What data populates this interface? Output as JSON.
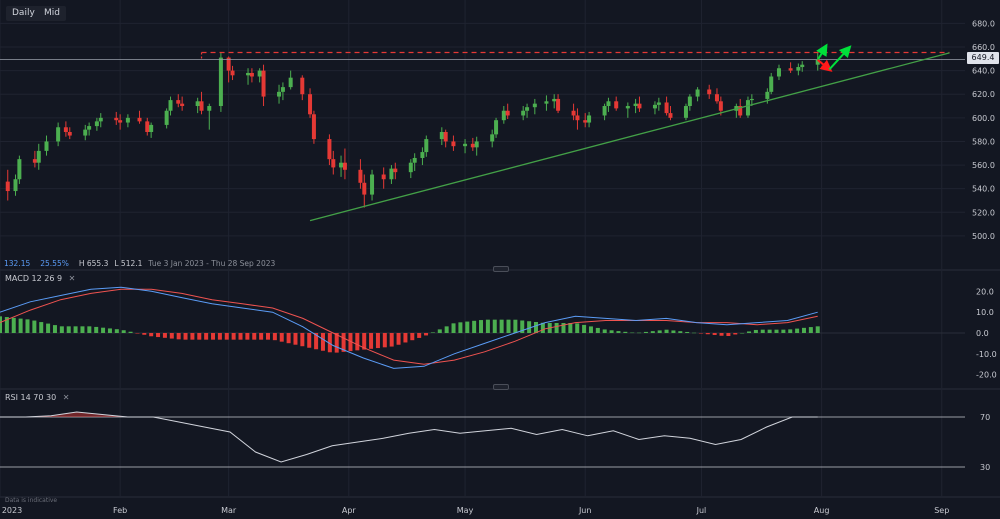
{
  "toolbar": {
    "daily_label": "Daily",
    "mid_label": "Mid"
  },
  "stats": {
    "v1": "132.15",
    "v2": "25.55%",
    "high": "H 655.3",
    "low": "L 512.1",
    "range": "Tue 3 Jan 2023 - Thu 28 Sep 2023"
  },
  "current_price": "649.4",
  "disclaimer": "Data is indicative",
  "macd_label": {
    "name": "MACD",
    "p1": "12",
    "p2": "26",
    "p3": "9",
    "close": "✕"
  },
  "rsi_label": {
    "name": "RSI",
    "p1": "14",
    "p2": "70",
    "p3": "30",
    "close": "✕"
  },
  "colors": {
    "bg": "#131722",
    "up": "#26a69a",
    "up_candle": "#4caf50",
    "down": "#e53935",
    "trend": "#43a047",
    "resistance": "#e53935",
    "macd": "#5b9cf6",
    "signal": "#ef5350",
    "rsi": "#d1d4dc"
  },
  "chart_data": [
    {
      "type": "candlestick",
      "title": "",
      "x_range": [
        "2023-01-01",
        "2023-09-07"
      ],
      "x_tick_labels": [
        "2023",
        "Feb",
        "Mar",
        "Apr",
        "May",
        "Jun",
        "Jul",
        "Aug",
        "Sep"
      ],
      "y_ticks": [
        500,
        520,
        540,
        560,
        580,
        600,
        620,
        640,
        660,
        680
      ],
      "y_range": [
        483,
        693
      ],
      "ohlc": [
        [
          546,
          556,
          530,
          538
        ],
        [
          538,
          552,
          534,
          548
        ],
        [
          548,
          568,
          544,
          565
        ],
        [
          565,
          572,
          558,
          562
        ],
        [
          562,
          578,
          556,
          572
        ],
        [
          572,
          585,
          568,
          580
        ],
        [
          580,
          596,
          576,
          592
        ],
        [
          592,
          597,
          584,
          588
        ],
        [
          588,
          592,
          582,
          585
        ],
        [
          585,
          594,
          581,
          590
        ],
        [
          590,
          596,
          585,
          593
        ],
        [
          593,
          600,
          589,
          597
        ],
        [
          597,
          604,
          592,
          600
        ],
        [
          600,
          605,
          594,
          598
        ],
        [
          598,
          603,
          590,
          596
        ],
        [
          596,
          603,
          592,
          600
        ],
        [
          600,
          606,
          595,
          597
        ],
        [
          597,
          600,
          585,
          588
        ],
        [
          588,
          596,
          583,
          594
        ],
        [
          594,
          608,
          591,
          606
        ],
        [
          606,
          618,
          602,
          615
        ],
        [
          615,
          620,
          609,
          612
        ],
        [
          612,
          618,
          606,
          610
        ],
        [
          610,
          617,
          604,
          614
        ],
        [
          614,
          622,
          603,
          606
        ],
        [
          606,
          612,
          590,
          610
        ],
        [
          610,
          655,
          605,
          651
        ],
        [
          651,
          652,
          630,
          640
        ],
        [
          640,
          644,
          632,
          636
        ],
        [
          636,
          642,
          628,
          638
        ],
        [
          638,
          642,
          630,
          635
        ],
        [
          635,
          642,
          630,
          640
        ],
        [
          640,
          645,
          610,
          618
        ],
        [
          618,
          628,
          612,
          622
        ],
        [
          622,
          630,
          615,
          626
        ],
        [
          626,
          640,
          624,
          634
        ],
        [
          634,
          636,
          615,
          620
        ],
        [
          620,
          625,
          600,
          603
        ],
        [
          603,
          606,
          578,
          582
        ],
        [
          582,
          586,
          560,
          565
        ],
        [
          565,
          572,
          552,
          558
        ],
        [
          558,
          568,
          550,
          562
        ],
        [
          562,
          574,
          548,
          556
        ],
        [
          556,
          565,
          540,
          545
        ],
        [
          545,
          552,
          524,
          535
        ],
        [
          535,
          556,
          530,
          552
        ],
        [
          552,
          558,
          540,
          548
        ],
        [
          548,
          560,
          544,
          557
        ],
        [
          557,
          562,
          548,
          554
        ],
        [
          554,
          565,
          549,
          562
        ],
        [
          562,
          570,
          555,
          566
        ],
        [
          566,
          575,
          560,
          571
        ],
        [
          571,
          585,
          567,
          582
        ],
        [
          582,
          592,
          577,
          588
        ],
        [
          588,
          590,
          575,
          580
        ],
        [
          580,
          585,
          572,
          576
        ],
        [
          576,
          582,
          570,
          578
        ],
        [
          578,
          583,
          572,
          575
        ],
        [
          575,
          584,
          568,
          580
        ],
        [
          580,
          590,
          575,
          586
        ],
        [
          586,
          600,
          583,
          598
        ],
        [
          598,
          610,
          595,
          606
        ],
        [
          606,
          612,
          599,
          602
        ],
        [
          602,
          610,
          598,
          606
        ],
        [
          606,
          612,
          600,
          609
        ],
        [
          609,
          616,
          603,
          612
        ],
        [
          612,
          619,
          606,
          614
        ],
        [
          614,
          620,
          608,
          616
        ],
        [
          616,
          620,
          604,
          606
        ],
        [
          606,
          612,
          598,
          602
        ],
        [
          602,
          608,
          590,
          598
        ],
        [
          598,
          604,
          592,
          596
        ],
        [
          596,
          605,
          592,
          602
        ],
        [
          602,
          612,
          598,
          610
        ],
        [
          610,
          617,
          605,
          614
        ],
        [
          614,
          618,
          606,
          608
        ],
        [
          608,
          613,
          600,
          610
        ],
        [
          610,
          616,
          604,
          612
        ],
        [
          612,
          618,
          605,
          608
        ],
        [
          608,
          614,
          603,
          611
        ],
        [
          611,
          617,
          606,
          613
        ],
        [
          613,
          618,
          602,
          604
        ],
        [
          604,
          610,
          598,
          600
        ],
        [
          600,
          612,
          598,
          610
        ],
        [
          610,
          620,
          606,
          618
        ],
        [
          618,
          626,
          614,
          624
        ],
        [
          624,
          628,
          616,
          620
        ],
        [
          620,
          625,
          612,
          614
        ],
        [
          614,
          618,
          602,
          606
        ],
        [
          606,
          612,
          600,
          610
        ],
        [
          610,
          616,
          600,
          602
        ],
        [
          602,
          618,
          600,
          615
        ],
        [
          615,
          620,
          610,
          616
        ],
        [
          616,
          625,
          612,
          622
        ],
        [
          622,
          638,
          620,
          635
        ],
        [
          635,
          645,
          632,
          642
        ],
        [
          642,
          647,
          638,
          640
        ],
        [
          640,
          646,
          636,
          643
        ],
        [
          643,
          648,
          639,
          645
        ],
        [
          645,
          656,
          640,
          649
        ]
      ],
      "trendline": {
        "from": [
          "2023-03-22",
          513
        ],
        "to": [
          "2023-09-03",
          655
        ]
      },
      "resistance": {
        "y": 655.3,
        "from": "2023-02-22",
        "to": "2023-09-03"
      },
      "current_price_line": 649.4,
      "scenario_arrows": [
        {
          "color": "green",
          "from": [
            "2023-07-31",
            649
          ],
          "to": [
            "2023-08-02",
            660
          ]
        },
        {
          "color": "red",
          "from": [
            "2023-07-31",
            649
          ],
          "to": [
            "2023-08-03",
            641
          ]
        },
        {
          "color": "green",
          "from": [
            "2023-08-03",
            641
          ],
          "to": [
            "2023-08-08",
            659
          ]
        }
      ]
    },
    {
      "type": "macd",
      "params": [
        12,
        26,
        9
      ],
      "y_ticks": [
        -20,
        -10,
        0,
        10,
        20
      ],
      "y_range": [
        -24,
        24
      ],
      "macd": [
        10,
        15,
        18,
        21,
        22,
        20,
        17,
        14,
        12,
        10,
        3,
        -6,
        -12,
        -17,
        -16,
        -10,
        -5,
        0,
        5,
        8,
        7,
        6,
        7,
        5,
        4,
        5,
        6,
        10
      ],
      "signal": [
        5,
        11,
        16,
        19,
        21,
        21,
        19,
        16,
        14,
        12,
        7,
        0,
        -7,
        -13,
        -15,
        -13,
        -9,
        -4,
        2,
        5,
        6,
        6,
        6,
        5,
        5,
        4,
        5,
        8
      ]
    },
    {
      "type": "rsi",
      "params": [
        14,
        70,
        30
      ],
      "y_ticks": [
        30,
        70
      ],
      "y_range": [
        18,
        82
      ],
      "rsi": [
        70,
        70,
        71,
        74,
        72,
        70,
        70,
        66,
        62,
        58,
        42,
        34,
        40,
        47,
        50,
        53,
        57,
        60,
        57,
        59,
        61,
        56,
        60,
        55,
        59,
        52,
        55,
        53,
        48,
        52,
        62,
        70,
        70
      ]
    }
  ]
}
